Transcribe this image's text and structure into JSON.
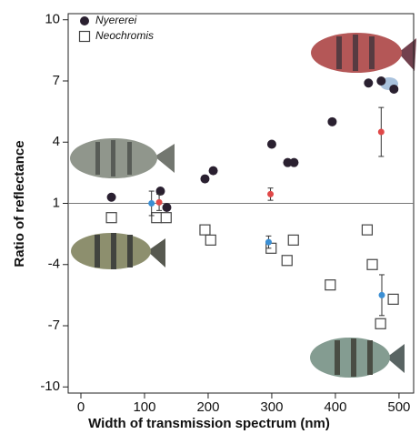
{
  "chart_data": {
    "type": "scatter",
    "x_label": "Width of transmission spectrum (nm)",
    "y_label": "Ratio of reflectance",
    "xlim": [
      -20,
      523
    ],
    "xticks": [
      0,
      100,
      200,
      300,
      400,
      500
    ],
    "ylim": [
      -10.3,
      10.3
    ],
    "yticks": [
      10,
      7,
      4,
      1,
      -4,
      -7,
      -10
    ],
    "reference_line": 1,
    "legend": "upper left",
    "series": [
      {
        "name": "Nyererei",
        "marker": "circle",
        "color": "#2a2030",
        "x": [
          48,
          125,
          135,
          195,
          208,
          300,
          325,
          335,
          395,
          452,
          472,
          492
        ],
        "values": [
          1.3,
          1.6,
          -1.2,
          2.2,
          2.6,
          3.9,
          3.0,
          3.0,
          5.0,
          6.9,
          7.0,
          6.6
        ]
      },
      {
        "name": "Neochromis",
        "marker": "square",
        "color": "#444444",
        "x": [
          48,
          119,
          134,
          195,
          204,
          299,
          324,
          334,
          392,
          450,
          458,
          471,
          491
        ],
        "values": [
          -1.7,
          -1.7,
          -1.7,
          -2.3,
          -2.8,
          -3.2,
          -3.8,
          -2.8,
          -5.0,
          -2.3,
          -4.0,
          -6.9,
          -5.7
        ]
      },
      {
        "marker": "circle",
        "color": "#e04848",
        "x": [
          123,
          298,
          472
        ],
        "values": [
          1.05,
          1.45,
          4.5
        ],
        "errors": [
          0.4,
          0.3,
          1.2
        ]
      },
      {
        "marker": "circle",
        "color": "#3b8fd4",
        "x": [
          111,
          295,
          473
        ],
        "values": [
          1,
          -2.9,
          -5.5
        ],
        "errors": [
          0.6,
          0.3,
          1.0
        ]
      }
    ]
  }
}
